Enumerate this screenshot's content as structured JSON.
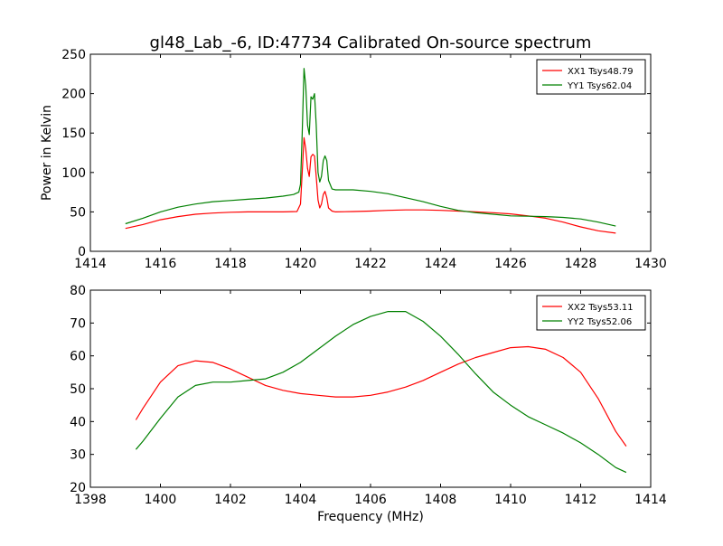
{
  "figure": {
    "title": "gl48_Lab_-6, ID:47734 Calibrated On-source spectrum",
    "ylabel": "Power in Kelvin",
    "xlabel": "Frequency (MHz)"
  },
  "colors": {
    "xx": "#ff0000",
    "yy": "#008000",
    "axes": "#000000",
    "background": "#ffffff"
  },
  "chart_data": [
    {
      "type": "line",
      "title": "gl48_Lab_-6, ID:47734 Calibrated On-source spectrum",
      "xlabel": "",
      "ylabel": "Power in Kelvin",
      "xlim": [
        1414,
        1430
      ],
      "ylim": [
        0,
        250
      ],
      "xticks": [
        1414,
        1416,
        1418,
        1420,
        1422,
        1424,
        1426,
        1428,
        1430
      ],
      "yticks": [
        0,
        50,
        100,
        150,
        200,
        250
      ],
      "grid": false,
      "legend": "top-right",
      "series": [
        {
          "name": "XX1 Tsys48.79",
          "color": "#ff0000",
          "points": [
            [
              1415.0,
              29
            ],
            [
              1415.5,
              34
            ],
            [
              1416.0,
              40
            ],
            [
              1416.5,
              44
            ],
            [
              1417.0,
              47
            ],
            [
              1417.5,
              48.5
            ],
            [
              1418.0,
              49.5
            ],
            [
              1418.5,
              50
            ],
            [
              1419.0,
              50
            ],
            [
              1419.5,
              50
            ],
            [
              1419.9,
              50.5
            ],
            [
              1420.0,
              60
            ],
            [
              1420.05,
              100
            ],
            [
              1420.1,
              144
            ],
            [
              1420.15,
              130
            ],
            [
              1420.2,
              105
            ],
            [
              1420.25,
              95
            ],
            [
              1420.3,
              120
            ],
            [
              1420.35,
              123
            ],
            [
              1420.4,
              121
            ],
            [
              1420.45,
              95
            ],
            [
              1420.5,
              65
            ],
            [
              1420.55,
              55
            ],
            [
              1420.6,
              60
            ],
            [
              1420.65,
              72
            ],
            [
              1420.7,
              76
            ],
            [
              1420.75,
              68
            ],
            [
              1420.8,
              55
            ],
            [
              1420.9,
              51
            ],
            [
              1421.0,
              50
            ],
            [
              1421.5,
              50.5
            ],
            [
              1422.0,
              51
            ],
            [
              1422.5,
              52
            ],
            [
              1423.0,
              52.5
            ],
            [
              1423.5,
              52.5
            ],
            [
              1424.0,
              52
            ],
            [
              1424.5,
              51
            ],
            [
              1425.0,
              50
            ],
            [
              1425.5,
              49
            ],
            [
              1426.0,
              47.5
            ],
            [
              1426.5,
              45
            ],
            [
              1427.0,
              42
            ],
            [
              1427.5,
              37
            ],
            [
              1428.0,
              31
            ],
            [
              1428.5,
              26
            ],
            [
              1429.0,
              23
            ]
          ]
        },
        {
          "name": "YY1 Tsys62.04",
          "color": "#008000",
          "points": [
            [
              1415.0,
              35
            ],
            [
              1415.5,
              42
            ],
            [
              1416.0,
              50
            ],
            [
              1416.5,
              56
            ],
            [
              1417.0,
              60
            ],
            [
              1417.5,
              63
            ],
            [
              1418.0,
              64.5
            ],
            [
              1418.5,
              66
            ],
            [
              1419.0,
              67.5
            ],
            [
              1419.5,
              70
            ],
            [
              1419.8,
              72
            ],
            [
              1419.95,
              75
            ],
            [
              1420.0,
              85
            ],
            [
              1420.05,
              150
            ],
            [
              1420.1,
              232
            ],
            [
              1420.15,
              210
            ],
            [
              1420.2,
              160
            ],
            [
              1420.25,
              148
            ],
            [
              1420.3,
              196
            ],
            [
              1420.35,
              193
            ],
            [
              1420.4,
              200
            ],
            [
              1420.45,
              160
            ],
            [
              1420.5,
              100
            ],
            [
              1420.55,
              88
            ],
            [
              1420.6,
              95
            ],
            [
              1420.65,
              115
            ],
            [
              1420.7,
              121
            ],
            [
              1420.75,
              115
            ],
            [
              1420.8,
              90
            ],
            [
              1420.9,
              79
            ],
            [
              1421.0,
              78
            ],
            [
              1421.5,
              78
            ],
            [
              1422.0,
              76
            ],
            [
              1422.5,
              73
            ],
            [
              1423.0,
              68
            ],
            [
              1423.5,
              63
            ],
            [
              1424.0,
              57
            ],
            [
              1424.5,
              52
            ],
            [
              1425.0,
              49
            ],
            [
              1425.5,
              47
            ],
            [
              1426.0,
              45
            ],
            [
              1426.5,
              44.5
            ],
            [
              1427.0,
              44
            ],
            [
              1427.5,
              43
            ],
            [
              1428.0,
              41
            ],
            [
              1428.5,
              37
            ],
            [
              1429.0,
              32
            ]
          ]
        }
      ]
    },
    {
      "type": "line",
      "title": "",
      "xlabel": "Frequency (MHz)",
      "ylabel": "",
      "xlim": [
        1398,
        1414
      ],
      "ylim": [
        20,
        80
      ],
      "xticks": [
        1398,
        1400,
        1402,
        1404,
        1406,
        1408,
        1410,
        1412,
        1414
      ],
      "yticks": [
        20,
        30,
        40,
        50,
        60,
        70,
        80
      ],
      "grid": false,
      "legend": "top-right",
      "series": [
        {
          "name": "XX2 Tsys53.11",
          "color": "#ff0000",
          "points": [
            [
              1399.3,
              40.5
            ],
            [
              1399.5,
              44
            ],
            [
              1400.0,
              52
            ],
            [
              1400.5,
              57
            ],
            [
              1401.0,
              58.5
            ],
            [
              1401.5,
              58
            ],
            [
              1402.0,
              56
            ],
            [
              1402.5,
              53.5
            ],
            [
              1403.0,
              51
            ],
            [
              1403.5,
              49.5
            ],
            [
              1404.0,
              48.5
            ],
            [
              1404.5,
              48
            ],
            [
              1405.0,
              47.5
            ],
            [
              1405.5,
              47.5
            ],
            [
              1406.0,
              48
            ],
            [
              1406.5,
              49
            ],
            [
              1407.0,
              50.5
            ],
            [
              1407.5,
              52.5
            ],
            [
              1408.0,
              55
            ],
            [
              1408.5,
              57.5
            ],
            [
              1409.0,
              59.5
            ],
            [
              1409.5,
              61
            ],
            [
              1410.0,
              62.5
            ],
            [
              1410.5,
              62.8
            ],
            [
              1411.0,
              62
            ],
            [
              1411.5,
              59.5
            ],
            [
              1412.0,
              55
            ],
            [
              1412.5,
              47
            ],
            [
              1413.0,
              37
            ],
            [
              1413.3,
              32.5
            ]
          ]
        },
        {
          "name": "YY2 Tsys52.06",
          "color": "#008000",
          "points": [
            [
              1399.3,
              31.5
            ],
            [
              1399.5,
              34
            ],
            [
              1400.0,
              41
            ],
            [
              1400.5,
              47.5
            ],
            [
              1401.0,
              51
            ],
            [
              1401.5,
              52
            ],
            [
              1402.0,
              52
            ],
            [
              1402.5,
              52.5
            ],
            [
              1403.0,
              53
            ],
            [
              1403.5,
              55
            ],
            [
              1404.0,
              58
            ],
            [
              1404.5,
              62
            ],
            [
              1405.0,
              66
            ],
            [
              1405.5,
              69.5
            ],
            [
              1406.0,
              72
            ],
            [
              1406.5,
              73.5
            ],
            [
              1407.0,
              73.5
            ],
            [
              1407.5,
              70.5
            ],
            [
              1408.0,
              66
            ],
            [
              1408.5,
              60.5
            ],
            [
              1409.0,
              54.5
            ],
            [
              1409.5,
              49
            ],
            [
              1410.0,
              45
            ],
            [
              1410.5,
              41.5
            ],
            [
              1411.0,
              39
            ],
            [
              1411.5,
              36.5
            ],
            [
              1412.0,
              33.5
            ],
            [
              1412.5,
              30
            ],
            [
              1413.0,
              26
            ],
            [
              1413.3,
              24.5
            ]
          ]
        }
      ]
    }
  ]
}
